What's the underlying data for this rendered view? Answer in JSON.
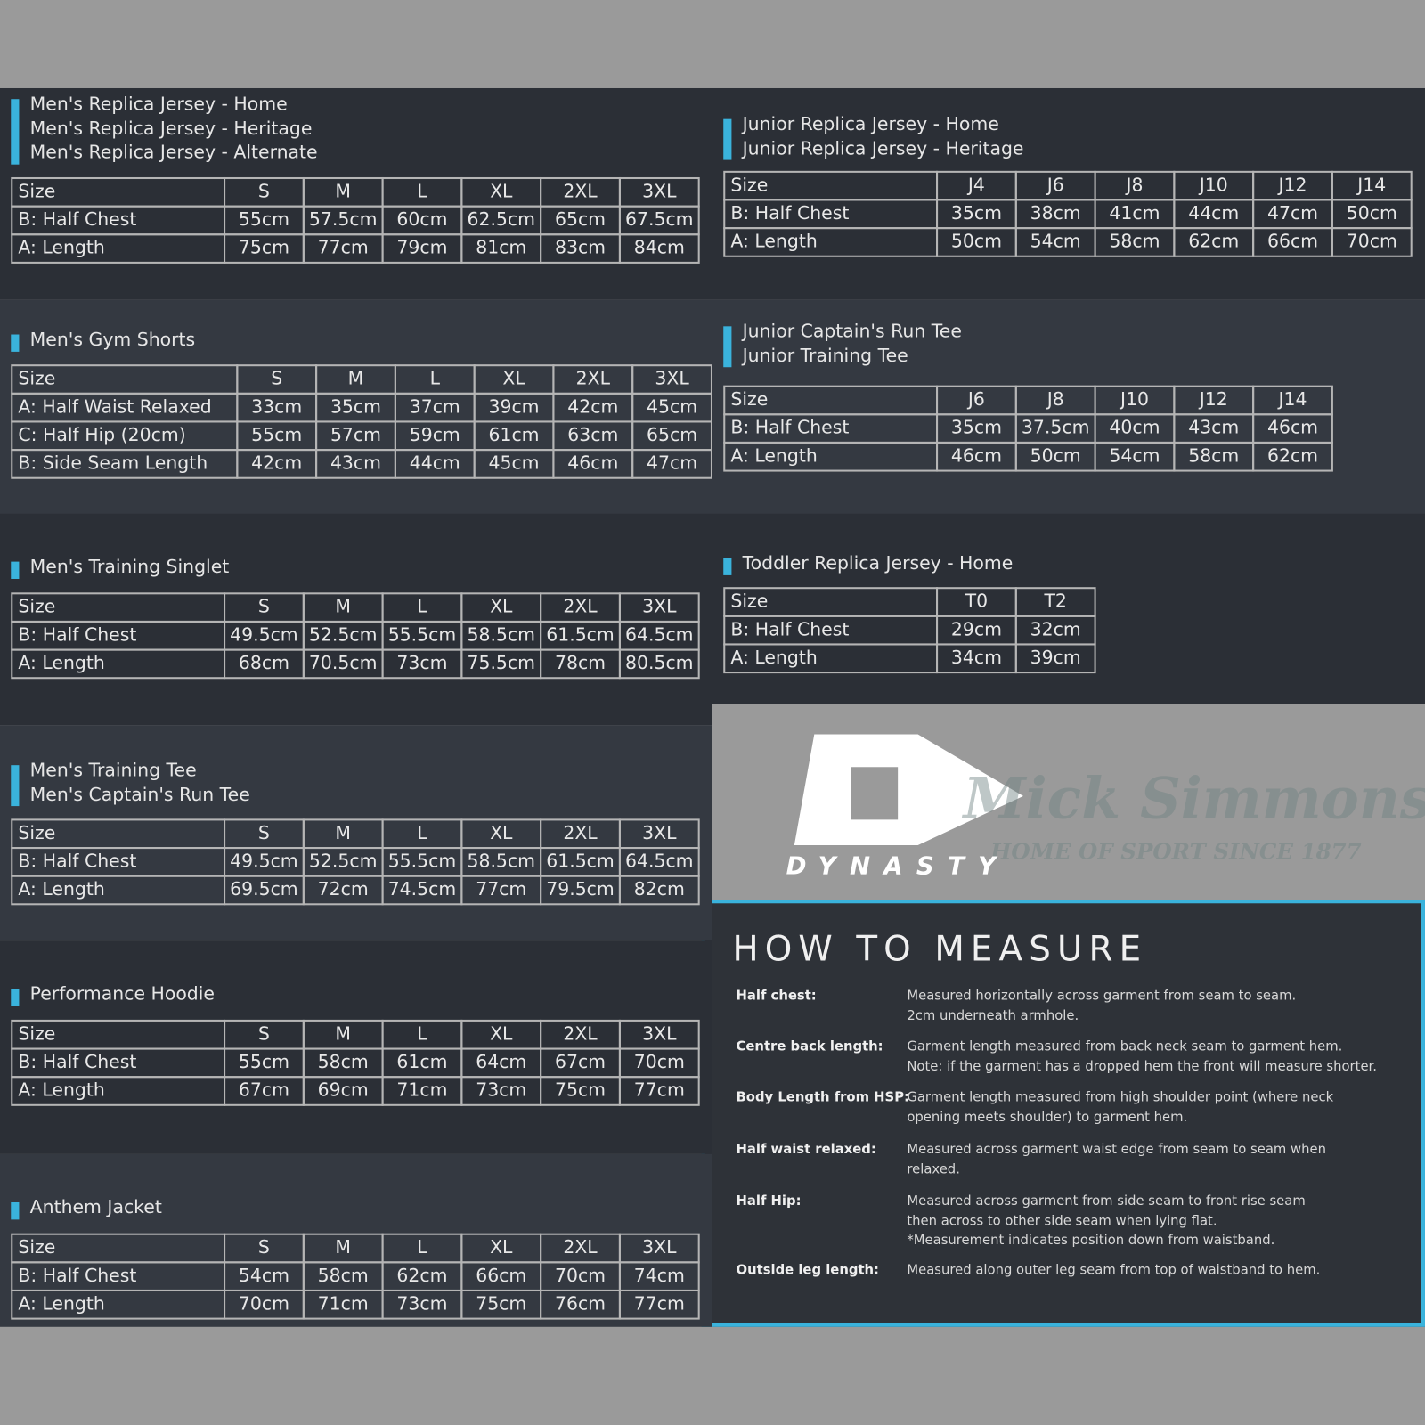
{
  "left_sections": [
    {
      "titles": [
        "Men's Replica Jersey - Home",
        "Men's Replica Jersey - Heritage",
        "Men's Replica Jersey - Alternate"
      ],
      "table": {
        "header": [
          "Size",
          "S",
          "M",
          "L",
          "XL",
          "2XL",
          "3XL"
        ],
        "rows": [
          [
            "B: Half Chest",
            "55cm",
            "57.5cm",
            "60cm",
            "62.5cm",
            "65cm",
            "67.5cm"
          ],
          [
            "A: Length",
            "75cm",
            "77cm",
            "79cm",
            "81cm",
            "83cm",
            "84cm"
          ]
        ]
      }
    },
    {
      "titles": [
        "Men's Gym Shorts"
      ],
      "table": {
        "header": [
          "Size",
          "S",
          "M",
          "L",
          "XL",
          "2XL",
          "3XL"
        ],
        "rows": [
          [
            "A: Half Waist Relaxed",
            "33cm",
            "35cm",
            "37cm",
            "39cm",
            "42cm",
            "45cm"
          ],
          [
            "C: Half Hip (20cm)",
            "55cm",
            "57cm",
            "59cm",
            "61cm",
            "63cm",
            "65cm"
          ],
          [
            "B: Side Seam Length",
            "42cm",
            "43cm",
            "44cm",
            "45cm",
            "46cm",
            "47cm"
          ]
        ]
      }
    },
    {
      "titles": [
        "Men's Training Singlet"
      ],
      "table": {
        "header": [
          "Size",
          "S",
          "M",
          "L",
          "XL",
          "2XL",
          "3XL"
        ],
        "rows": [
          [
            "B: Half Chest",
            "49.5cm",
            "52.5cm",
            "55.5cm",
            "58.5cm",
            "61.5cm",
            "64.5cm"
          ],
          [
            "A: Length",
            "68cm",
            "70.5cm",
            "73cm",
            "75.5cm",
            "78cm",
            "80.5cm"
          ]
        ]
      }
    },
    {
      "titles": [
        "Men's Training Tee",
        "Men's Captain's Run Tee"
      ],
      "table": {
        "header": [
          "Size",
          "S",
          "M",
          "L",
          "XL",
          "2XL",
          "3XL"
        ],
        "rows": [
          [
            "B: Half Chest",
            "49.5cm",
            "52.5cm",
            "55.5cm",
            "58.5cm",
            "61.5cm",
            "64.5cm"
          ],
          [
            "A: Length",
            "69.5cm",
            "72cm",
            "74.5cm",
            "77cm",
            "79.5cm",
            "82cm"
          ]
        ]
      }
    },
    {
      "titles": [
        "Performance Hoodie"
      ],
      "table": {
        "header": [
          "Size",
          "S",
          "M",
          "L",
          "XL",
          "2XL",
          "3XL"
        ],
        "rows": [
          [
            "B: Half Chest",
            "55cm",
            "58cm",
            "61cm",
            "64cm",
            "67cm",
            "70cm"
          ],
          [
            "A: Length",
            "67cm",
            "69cm",
            "71cm",
            "73cm",
            "75cm",
            "77cm"
          ]
        ]
      }
    },
    {
      "titles": [
        "Anthem Jacket"
      ],
      "table": {
        "header": [
          "Size",
          "S",
          "M",
          "L",
          "XL",
          "2XL",
          "3XL"
        ],
        "rows": [
          [
            "B: Half Chest",
            "54cm",
            "58cm",
            "62cm",
            "66cm",
            "70cm",
            "74cm"
          ],
          [
            "A: Length",
            "70cm",
            "71cm",
            "73cm",
            "75cm",
            "76cm",
            "77cm"
          ]
        ]
      }
    }
  ],
  "right_sections": [
    {
      "titles": [
        "Junior Replica Jersey - Home",
        "Junior Replica Jersey - Heritage"
      ],
      "table": {
        "header": [
          "Size",
          "J4",
          "J6",
          "J8",
          "J10",
          "J12",
          "J14"
        ],
        "rows": [
          [
            "B: Half Chest",
            "35cm",
            "38cm",
            "41cm",
            "44cm",
            "47cm",
            "50cm"
          ],
          [
            "A: Length",
            "50cm",
            "54cm",
            "58cm",
            "62cm",
            "66cm",
            "70cm"
          ]
        ]
      }
    },
    {
      "titles": [
        "Junior Captain's Run Tee",
        "Junior Training Tee"
      ],
      "table": {
        "header": [
          "Size",
          "J6",
          "J8",
          "J10",
          "J12",
          "J14"
        ],
        "rows": [
          [
            "B: Half Chest",
            "35cm",
            "37.5cm",
            "40cm",
            "43cm",
            "46cm"
          ],
          [
            "A: Length",
            "46cm",
            "50cm",
            "54cm",
            "58cm",
            "62cm"
          ]
        ]
      }
    },
    {
      "titles": [
        "Toddler Replica Jersey - Home"
      ],
      "table": {
        "header": [
          "Size",
          "T0",
          "T2"
        ],
        "rows": [
          [
            "B: Half Chest",
            "29cm",
            "32cm"
          ],
          [
            "A: Length",
            "34cm",
            "39cm"
          ]
        ]
      }
    }
  ],
  "logo": {
    "brand": "DYNASTY",
    "watermark": "Mick Simmons",
    "watermark_tagline": "HOME OF SPORT SINCE 1877"
  },
  "how_to_measure": {
    "title": "HOW TO MEASURE",
    "items": [
      {
        "label": "Half chest:",
        "lines": [
          "Measured horizontally across garment from seam to seam.",
          "2cm underneath armhole."
        ]
      },
      {
        "label": "Centre back length:",
        "lines": [
          "Garment length measured from back neck seam to garment hem.",
          "Note: if the garment has a dropped hem the front will measure shorter."
        ]
      },
      {
        "label": "Body Length from HSP:",
        "lines": [
          "Garment length measured from high shoulder point (where neck",
          "opening meets shoulder) to garment hem."
        ]
      },
      {
        "label": "Half waist relaxed:",
        "lines": [
          "Measured across garment waist edge from seam to seam when",
          "relaxed."
        ]
      },
      {
        "label": "Half Hip:",
        "lines": [
          "Measured across garment from side seam to front rise seam",
          "then across to other side seam when lying flat.",
          "*Measurement indicates position down from waistband."
        ]
      },
      {
        "label": "Outside leg length:",
        "lines": [
          "Measured along outer leg seam from top of waistband to hem."
        ]
      }
    ]
  }
}
